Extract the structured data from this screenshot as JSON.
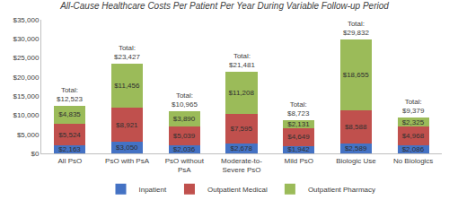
{
  "chart_data": {
    "type": "bar",
    "title": "All-Cause Healthcare Costs Per Patient Per Year During Variable Follow-up Period",
    "categories": [
      "All PsO",
      "PsO with PsA",
      "PsO without PsA",
      "Moderate-to-Severe PsO",
      "Mild PsO",
      "Biologic Use",
      "No Biologics"
    ],
    "stacked": true,
    "data_labels": true,
    "grid": false,
    "legend": "bottom",
    "series": [
      {
        "name": "Inpatient",
        "color": "#4472c4",
        "values": [
          2163,
          3050,
          2036,
          2678,
          1942,
          2589,
          2086
        ],
        "value_labels": [
          "$2,163",
          "$3,050",
          "$2,036",
          "$2,678",
          "$1,942",
          "$2,589",
          "$2,086"
        ]
      },
      {
        "name": "Outpatient Medical",
        "color": "#c0504d",
        "values": [
          5524,
          8921,
          5039,
          7595,
          4649,
          8588,
          4968
        ],
        "value_labels": [
          "$5,524",
          "$8,921",
          "$5,039",
          "$7,595",
          "$4,649",
          "$8,588",
          "$4,968"
        ]
      },
      {
        "name": "Outpatient Pharmacy",
        "color": "#9bbb59",
        "values": [
          4835,
          11456,
          3890,
          11208,
          2131,
          18655,
          2325
        ],
        "value_labels": [
          "$4,835",
          "$11,456",
          "$3,890",
          "$11,208",
          "$2,131",
          "$18,655",
          "$2,325"
        ]
      }
    ],
    "annotations": [
      {
        "category": "All PsO",
        "value": 12523,
        "text": [
          "Total:",
          "$12,523"
        ]
      },
      {
        "category": "PsO with PsA",
        "value": 23427,
        "text": [
          "Total:",
          "$23,427"
        ]
      },
      {
        "category": "PsO without PsA",
        "value": 10965,
        "text": [
          "Total:",
          "$10,965"
        ]
      },
      {
        "category": "Moderate-to-Severe PsO",
        "value": 21481,
        "text": [
          "Total:",
          "$21,481"
        ]
      },
      {
        "category": "Mild PsO",
        "value": 8723,
        "text": [
          "Total:",
          "$8,723"
        ]
      },
      {
        "category": "Biologic Use",
        "value": 29832,
        "text": [
          "Total:",
          "$29,832"
        ]
      },
      {
        "category": "No Biologics",
        "value": 9379,
        "text": [
          "Total:",
          "$9,379"
        ]
      }
    ],
    "ylim": [
      0,
      35000
    ],
    "yticks": [
      {
        "value": 0,
        "label": "$0"
      },
      {
        "value": 5000,
        "label": "$5,000"
      },
      {
        "value": 10000,
        "label": "$10,000"
      },
      {
        "value": 15000,
        "label": "$15,000"
      },
      {
        "value": 20000,
        "label": "$20,000"
      },
      {
        "value": 25000,
        "label": "$25,000"
      },
      {
        "value": 30000,
        "label": "$30,000"
      },
      {
        "value": 35000,
        "label": "$35,000"
      }
    ]
  }
}
